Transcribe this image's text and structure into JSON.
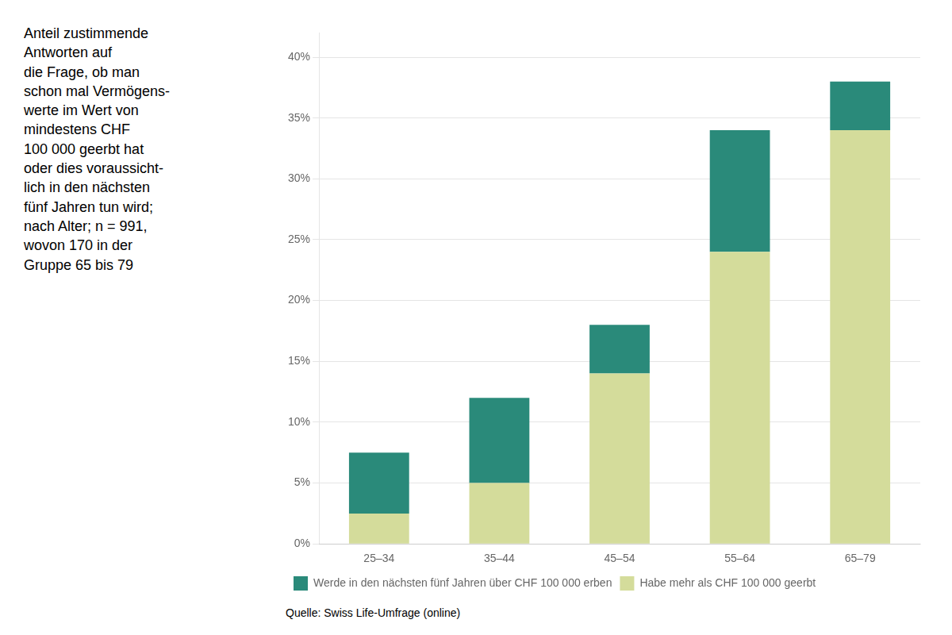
{
  "chart_data": {
    "type": "bar",
    "stacked": true,
    "title": "Anteil zustimmende\nAntworten auf\ndie Frage, ob man\nschon mal Vermögens-\nwerte im Wert von\nmindestens CHF\n100 000 geerbt hat\noder dies voraussicht-\nlich in den nächsten\nfünf Jahren tun wird;\nnach Alter; n = 991,\nwovon 170 in der\nGruppe 65 bis 79",
    "source": "Quelle: Swiss Life-Umfrage (online)",
    "categories": [
      "25–34",
      "35–44",
      "45–54",
      "55–64",
      "65–79"
    ],
    "series": [
      {
        "name": "Habe mehr als CHF 100 000 geerbt",
        "color": "#d4dc9b",
        "values": [
          2.5,
          5.0,
          14.0,
          24.0,
          34.0
        ]
      },
      {
        "name": "Werde in den nächsten fünf Jahren über CHF 100 000 erben",
        "color": "#2a8a7a",
        "values": [
          5.0,
          7.0,
          4.0,
          10.0,
          4.0
        ]
      }
    ],
    "ylim": [
      0,
      42
    ],
    "yticks": [
      {
        "value": 0,
        "label": "0%"
      },
      {
        "value": 5,
        "label": "5%"
      },
      {
        "value": 10,
        "label": "10%"
      },
      {
        "value": 15,
        "label": "15%"
      },
      {
        "value": 20,
        "label": "20%"
      },
      {
        "value": 25,
        "label": "25%"
      },
      {
        "value": 30,
        "label": "30%"
      },
      {
        "value": 35,
        "label": "35%"
      },
      {
        "value": 40,
        "label": "40%"
      }
    ],
    "grid": true,
    "legend": "bottom"
  }
}
